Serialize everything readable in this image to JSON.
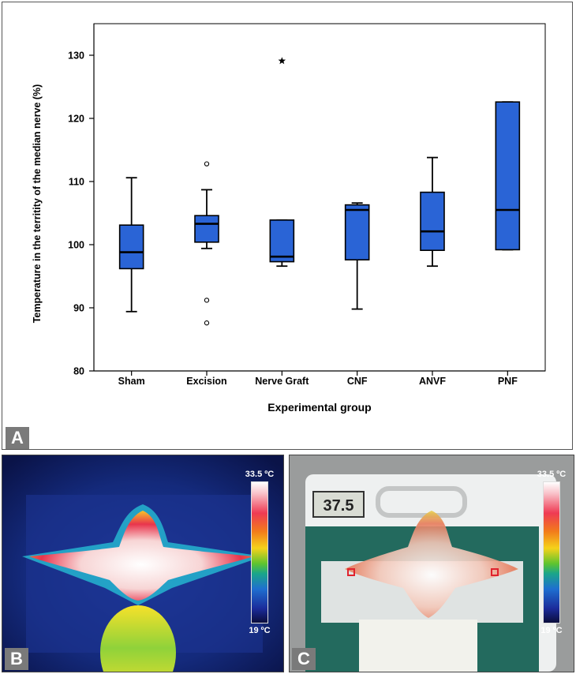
{
  "chart_data": {
    "type": "boxplot",
    "ylabel": "Temperature in the territity of the median nerve (%)",
    "xlabel": "Experimental group",
    "ylim": [
      80,
      135
    ],
    "yticks": [
      80,
      90,
      100,
      110,
      120,
      130
    ],
    "categories": [
      "Sham",
      "Excision",
      "Nerve Graft",
      "CNF",
      "ANVF",
      "PNF"
    ],
    "boxes": [
      {
        "name": "Sham",
        "whisker_low": 89.4,
        "q1": 96.2,
        "median": 98.8,
        "q3": 103.1,
        "whisker_high": 110.6,
        "outliers": [],
        "extremes": []
      },
      {
        "name": "Excision",
        "whisker_low": 99.4,
        "q1": 100.4,
        "median": 103.3,
        "q3": 104.6,
        "whisker_high": 108.7,
        "outliers": [
          112.8,
          91.2,
          87.6
        ],
        "extremes": []
      },
      {
        "name": "Nerve Graft",
        "whisker_low": 96.6,
        "q1": 97.3,
        "median": 98.1,
        "q3": 103.9,
        "whisker_high": 103.9,
        "outliers": [],
        "extremes": [
          129.1
        ]
      },
      {
        "name": "CNF",
        "whisker_low": 89.8,
        "q1": 97.6,
        "median": 105.5,
        "q3": 106.3,
        "whisker_high": 106.6,
        "outliers": [],
        "extremes": []
      },
      {
        "name": "ANVF",
        "whisker_low": 96.6,
        "q1": 99.1,
        "median": 102.1,
        "q3": 108.3,
        "whisker_high": 113.8,
        "outliers": [],
        "extremes": []
      },
      {
        "name": "PNF",
        "whisker_low": 99.2,
        "q1": 99.2,
        "median": 105.5,
        "q3": 122.6,
        "whisker_high": 122.6,
        "outliers": [],
        "extremes": []
      }
    ],
    "box_color": "#2a64d6"
  },
  "panels": {
    "a_label": "A",
    "b_label": "B",
    "c_label": "C"
  },
  "thermal": {
    "scale_max": "33.5 ºC",
    "scale_min": "19 ºC",
    "display_reading": "37.5"
  }
}
